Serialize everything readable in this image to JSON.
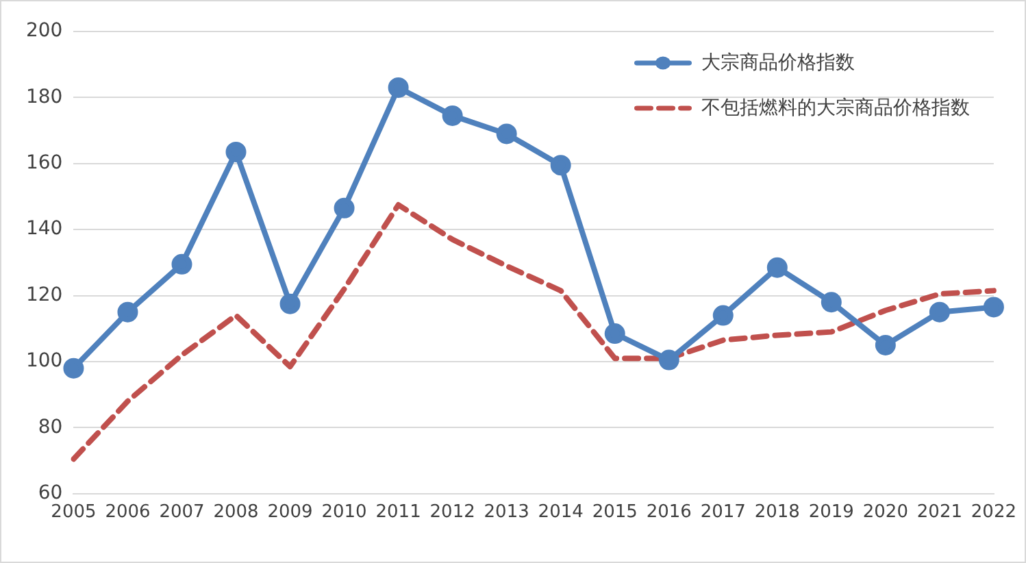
{
  "chart_data": {
    "type": "line",
    "categories": [
      "2005",
      "2006",
      "2007",
      "2008",
      "2009",
      "2010",
      "2011",
      "2012",
      "2013",
      "2014",
      "2015",
      "2016",
      "2017",
      "2018",
      "2019",
      "2020",
      "2021",
      "2022"
    ],
    "series": [
      {
        "name": "大宗商品价格指数",
        "color": "#4f81bd",
        "marker": "circle",
        "line_style": "solid",
        "values": [
          98,
          115,
          129.5,
          163.5,
          117.5,
          146.5,
          183,
          174.5,
          169,
          159.5,
          108.5,
          100.5,
          114,
          128.5,
          118,
          105,
          115,
          116.5
        ]
      },
      {
        "name": "不包括燃料的大宗商品价格指数",
        "color": "#c0504d",
        "marker": "none",
        "line_style": "dashed",
        "values": [
          70.5,
          88,
          102,
          114,
          98.5,
          122,
          147.5,
          137,
          129,
          121.5,
          101,
          101,
          106.5,
          108,
          109,
          115.5,
          120.5,
          121.5
        ]
      }
    ],
    "ylim": [
      60,
      200
    ],
    "yticks": [
      60,
      80,
      100,
      120,
      140,
      160,
      180,
      200
    ],
    "grid": "y",
    "legend": "top right"
  }
}
